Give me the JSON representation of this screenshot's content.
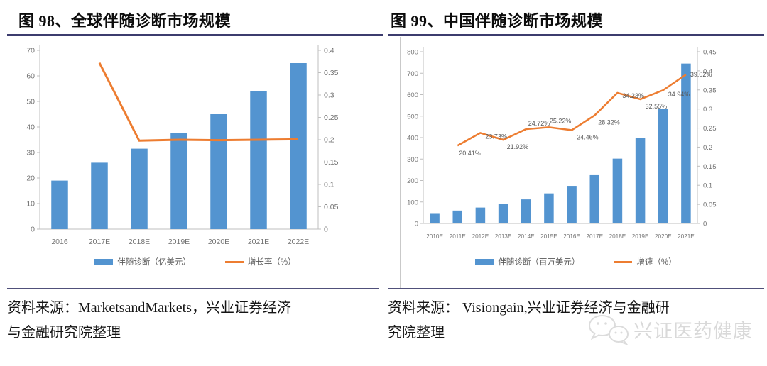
{
  "figures": [
    {
      "title": "图 98、全球伴随诊断市场规模",
      "source": {
        "lines": [
          "资料来源：MarketsandMarkets，兴业证券经济",
          "与金融研究院整理"
        ]
      }
    },
    {
      "title": "图 99、中国伴随诊断市场规模",
      "source": {
        "lines": [
          "资料来源： Visiongain,兴业证券经济与金融研",
          "究院整理"
        ]
      }
    }
  ],
  "watermark": {
    "icon": "wechat-icon",
    "text": "兴证医药健康"
  },
  "chart_data": [
    {
      "type": "bar",
      "subtype": "bar+line-combo",
      "title": "图 98、全球伴随诊断市场规模",
      "categories": [
        "2016",
        "2017E",
        "2018E",
        "2019E",
        "2020E",
        "2021E",
        "2022E"
      ],
      "series": [
        {
          "name": "伴随诊断（亿美元）",
          "type": "bar",
          "axis": "left",
          "values": [
            19,
            26,
            31.5,
            37.5,
            45,
            54,
            65
          ]
        },
        {
          "name": "增长率（%）",
          "type": "line",
          "axis": "right",
          "values": [
            null,
            0.372,
            0.198,
            0.2,
            0.199,
            0.2,
            0.201
          ]
        }
      ],
      "left_axis": {
        "min": 0,
        "max": 70,
        "step": 10,
        "ticks": [
          "0",
          "10",
          "20",
          "30",
          "40",
          "50",
          "60",
          "70"
        ]
      },
      "right_axis": {
        "min": 0,
        "max": 0.4,
        "step": 0.05,
        "ticks": [
          "0",
          "0.05",
          "0.1",
          "0.15",
          "0.2",
          "0.25",
          "0.3",
          "0.35",
          "0.4"
        ]
      },
      "colors": {
        "bar": "#5394d0",
        "line": "#ed7d31",
        "axis": "#bfbfbf",
        "tick_label": "#737373"
      },
      "legend_position": "bottom",
      "grid": false
    },
    {
      "type": "bar",
      "subtype": "bar+line-combo",
      "title": "图 99、中国伴随诊断市场规模",
      "categories": [
        "2010E",
        "2011E",
        "2012E",
        "2013E",
        "2014E",
        "2015E",
        "2016E",
        "2017E",
        "2018E",
        "2019E",
        "2020E",
        "2021E"
      ],
      "series": [
        {
          "name": "伴随诊断（百万美元）",
          "type": "bar",
          "axis": "left",
          "values": [
            48,
            60,
            74,
            90,
            112,
            140,
            175,
            225,
            302,
            400,
            535,
            745
          ]
        },
        {
          "name": "增速（%）",
          "type": "line",
          "axis": "right",
          "values": [
            null,
            0.2041,
            0.2373,
            0.2192,
            0.2472,
            0.2522,
            0.2446,
            0.2832,
            0.3423,
            0.3255,
            0.3494,
            0.3902
          ],
          "labels": [
            null,
            "20.41%",
            "23.73%",
            "21.92%",
            "24.72%",
            "25.22%",
            "24.46%",
            "28.32%",
            "34.23%",
            "32.55%",
            "34.94%",
            "39.02%"
          ],
          "label_offsets": [
            null,
            [
              2,
              14
            ],
            [
              7,
              8
            ],
            [
              5,
              13
            ],
            [
              3,
              -5
            ],
            [
              1,
              -6
            ],
            [
              7,
              13
            ],
            [
              5,
              13
            ],
            [
              7,
              7
            ],
            [
              7,
              13
            ],
            [
              7,
              9
            ],
            [
              6,
              3
            ]
          ]
        }
      ],
      "left_axis": {
        "min": 0,
        "max": 800,
        "step": 100,
        "ticks": [
          "0",
          "100",
          "200",
          "300",
          "400",
          "500",
          "600",
          "700",
          "800"
        ]
      },
      "right_axis": {
        "min": 0,
        "max": 0.45,
        "step": 0.05,
        "ticks": [
          "0",
          "0.05",
          "0.1",
          "0.15",
          "0.2",
          "0.25",
          "0.3",
          "0.35",
          "0.4",
          "0.45"
        ]
      },
      "colors": {
        "bar": "#5394d0",
        "line": "#ed7d31",
        "axis": "#bfbfbf",
        "tick_label": "#737373"
      },
      "legend_position": "bottom",
      "grid": false
    }
  ]
}
